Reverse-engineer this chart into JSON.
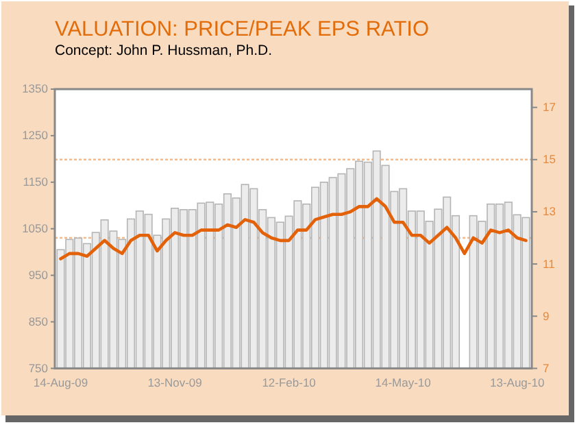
{
  "chart_data": {
    "type": "bar",
    "title": "VALUATION: PRICE/PEAK EPS RATIO",
    "subtitle": "Concept: John P. Hussman, Ph.D.",
    "categories": [
      "14-Aug-09",
      null,
      null,
      null,
      null,
      null,
      null,
      null,
      null,
      null,
      null,
      null,
      null,
      "13-Nov-09",
      null,
      null,
      null,
      null,
      null,
      null,
      null,
      null,
      null,
      null,
      null,
      null,
      "12-Feb-10",
      null,
      null,
      null,
      null,
      null,
      null,
      null,
      null,
      null,
      null,
      null,
      null,
      "14-May-10",
      null,
      null,
      null,
      null,
      null,
      null,
      null,
      null,
      null,
      null,
      null,
      null,
      "13-Aug-10",
      null
    ],
    "series": [
      {
        "color": "#ececec",
        "values": [
          1005,
          1027,
          1030,
          1018,
          1042,
          1069,
          1045,
          1027,
          1071,
          1088,
          1081,
          1036,
          1071,
          1094,
          1091,
          1091,
          1105,
          1107,
          1103,
          1125,
          1116,
          1145,
          1136,
          1091,
          1074,
          1064,
          1077,
          1110,
          1103,
          1139,
          1150,
          1160,
          1168,
          1179,
          1195,
          1193,
          1217,
          1186,
          1130,
          1136,
          1088,
          1088,
          1066,
          1092,
          1118,
          1078,
          null,
          1078,
          1066,
          1103,
          1103,
          1107,
          1080,
          1074
        ]
      },
      {
        "type": "line",
        "axis": "y2",
        "color": "#e36209",
        "values": [
          11.2,
          11.4,
          11.4,
          11.3,
          11.6,
          11.9,
          11.6,
          11.4,
          11.9,
          12.1,
          12.1,
          11.5,
          11.9,
          12.2,
          12.1,
          12.1,
          12.3,
          12.3,
          12.3,
          12.5,
          12.4,
          12.7,
          12.6,
          12.2,
          12.0,
          11.9,
          11.9,
          12.3,
          12.3,
          12.7,
          12.8,
          12.9,
          12.9,
          13.0,
          13.2,
          13.2,
          13.5,
          13.2,
          12.6,
          12.6,
          12.1,
          12.1,
          11.8,
          12.1,
          12.4,
          12.0,
          11.4,
          12.0,
          11.8,
          12.3,
          12.2,
          12.3,
          12.0,
          11.9
        ]
      }
    ],
    "ylim": [
      750,
      1350
    ],
    "yticks": [
      750,
      850,
      950,
      1050,
      1150,
      1250,
      1350
    ],
    "y2lim": [
      7,
      17.7
    ],
    "y2ticks": [
      7,
      9,
      11,
      13,
      15,
      17
    ],
    "ref_lines": [
      {
        "axis": "y2",
        "value": 15,
        "color": "#f6b98a",
        "line_style": "dotted"
      },
      {
        "axis": "y2",
        "value": 12,
        "color": "#f6b98a",
        "line_style": "dotted"
      }
    ]
  }
}
